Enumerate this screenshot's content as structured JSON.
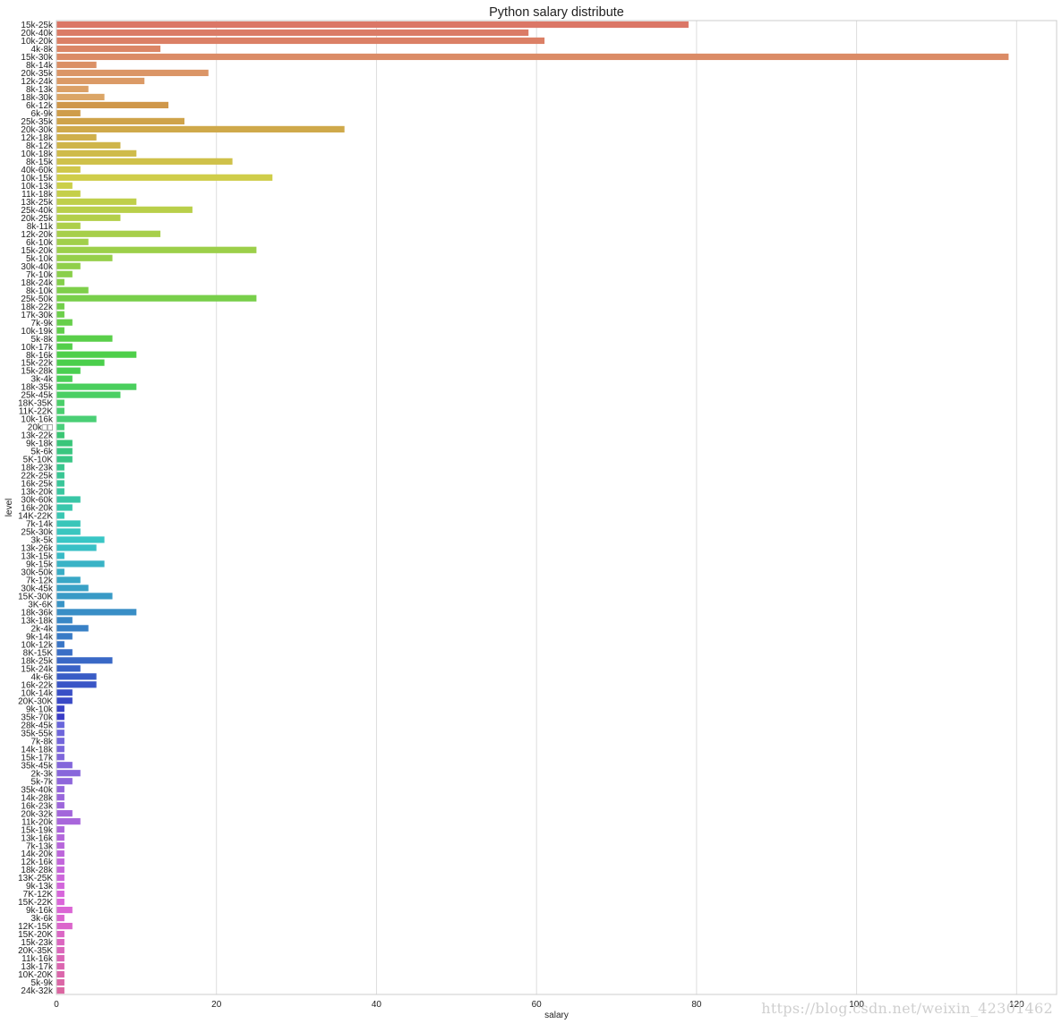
{
  "chart_data": {
    "type": "bar",
    "orientation": "horizontal",
    "title": "Python salary distribute",
    "xlabel": "salary",
    "ylabel": "level",
    "xlim": [
      0,
      125
    ],
    "xticks": [
      0,
      20,
      40,
      60,
      80,
      100,
      120
    ],
    "grid": "vertical",
    "categories": [
      "15k-25k",
      "20k-40k",
      "10k-20k",
      "4k-8k",
      "15k-30k",
      "8k-14k",
      "20k-35k",
      "12k-24k",
      "8k-13k",
      "18k-30k",
      "6k-12k",
      "6k-9k",
      "25k-35k",
      "20k-30k",
      "12k-18k",
      "8k-12k",
      "10k-18k",
      "8k-15k",
      "40k-60k",
      "10k-15k",
      "10k-13k",
      "11k-18k",
      "13k-25k",
      "25k-40k",
      "20k-25k",
      "8k-11k",
      "12k-20k",
      "6k-10k",
      "15k-20k",
      "5k-10k",
      "30k-40k",
      "7k-10k",
      "18k-24k",
      "8k-10k",
      "25k-50k",
      "18k-22k",
      "17k-30k",
      "7k-9k",
      "10k-19k",
      "5k-8k",
      "10k-17k",
      "8k-16k",
      "15k-22k",
      "15k-28k",
      "3k-4k",
      "18k-35k",
      "25k-45k",
      "18K-35K",
      "11K-22K",
      "10k-16k",
      "20k□□",
      "13k-22k",
      "9k-18k",
      "5k-6k",
      "5K-10K",
      "18k-23k",
      "22k-25k",
      "16k-25k",
      "13k-20k",
      "30k-60k",
      "16k-20k",
      "14K-22K",
      "7k-14k",
      "25k-30k",
      "3k-5k",
      "13k-26k",
      "13k-15k",
      "9k-15k",
      "30k-50k",
      "7k-12k",
      "30k-45k",
      "15K-30K",
      "3K-6K",
      "18k-36k",
      "13k-18k",
      "2k-4k",
      "9k-14k",
      "10k-12k",
      "8K-15K",
      "18k-25k",
      "15k-24k",
      "4k-6k",
      "16k-22k",
      "10k-14k",
      "20K-30K",
      "9k-10k",
      "35k-70k",
      "28k-45k",
      "35k-55k",
      "7k-8k",
      "14k-18k",
      "15k-17k",
      "35k-45k",
      "2k-3k",
      "5k-7k",
      "35k-40k",
      "14k-28k",
      "16k-23k",
      "20k-32k",
      "11k-20k",
      "15k-19k",
      "13k-16k",
      "7k-13k",
      "14k-20k",
      "12k-16k",
      "18k-28k",
      "13K-25K",
      "9k-13k",
      "7K-12K",
      "15K-22K",
      "9k-16k",
      "3k-6k",
      "12K-15K",
      "15K-20K",
      "15k-23k",
      "20K-35K",
      "11k-16k",
      "13k-17k",
      "10K-20K",
      "5k-9k",
      "24k-32k"
    ],
    "values": [
      79,
      59,
      61,
      13,
      119,
      5,
      19,
      11,
      4,
      6,
      14,
      3,
      16,
      36,
      5,
      8,
      10,
      22,
      3,
      27,
      2,
      3,
      10,
      17,
      8,
      3,
      13,
      4,
      25,
      7,
      3,
      2,
      1,
      4,
      25,
      1,
      1,
      2,
      1,
      7,
      2,
      10,
      6,
      3,
      2,
      10,
      8,
      1,
      1,
      5,
      1,
      1,
      2,
      2,
      2,
      1,
      1,
      1,
      1,
      3,
      2,
      1,
      3,
      3,
      6,
      5,
      1,
      6,
      1,
      3,
      4,
      7,
      1,
      10,
      2,
      4,
      2,
      1,
      2,
      7,
      3,
      5,
      5,
      2,
      2,
      1,
      1,
      1,
      1,
      1,
      1,
      1,
      2,
      3,
      2,
      1,
      1,
      1,
      2,
      3,
      1,
      1,
      1,
      1,
      1,
      1,
      1,
      1,
      1,
      1,
      2,
      1,
      2,
      1,
      1,
      1,
      1,
      1,
      1,
      1,
      1
    ],
    "palette": "husl",
    "watermark": "https://blog.csdn.net/weixin_42301462"
  }
}
